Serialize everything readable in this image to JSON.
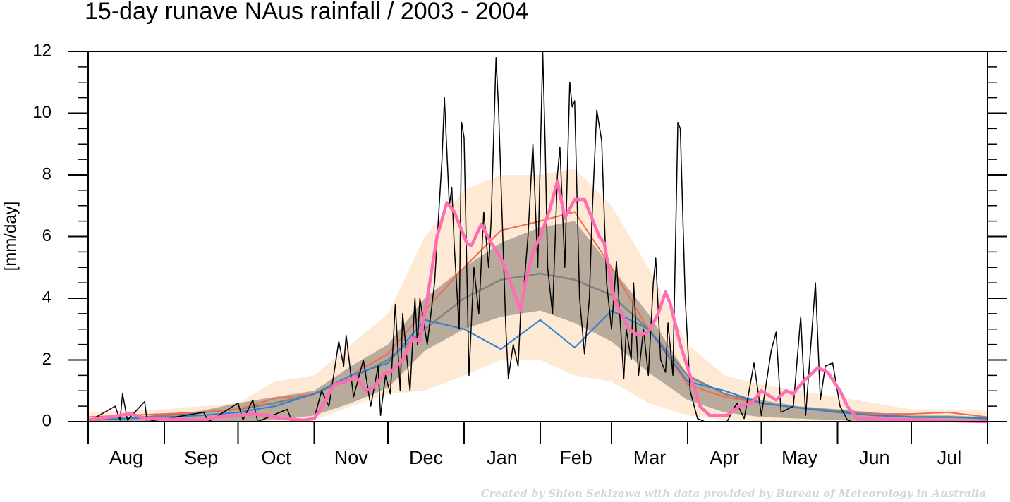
{
  "chart_data": {
    "type": "line",
    "title": "15-day runave NAus rainfall  /  2003 - 2004",
    "ylabel": "[mm/day]",
    "credit": "Created by Shion Sekizawa with data provided by Bureau of Meteorology in Australia",
    "xlim": [
      0,
      366
    ],
    "ylim": [
      0,
      12
    ],
    "yticks": [
      0,
      2,
      4,
      6,
      8,
      10,
      12
    ],
    "yminor_ticks": [
      0.5,
      1,
      1.5,
      2.5,
      3,
      3.5,
      4.5,
      5,
      5.5,
      6.5,
      7,
      7.5,
      8.5,
      9,
      9.5,
      10.5,
      11,
      11.5
    ],
    "month_ticks": [
      0,
      31,
      61,
      92,
      122,
      153,
      184,
      213,
      244,
      274,
      305,
      335,
      366
    ],
    "xticks": [
      {
        "value": 15.5,
        "label": "Aug"
      },
      {
        "value": 46,
        "label": "Sep"
      },
      {
        "value": 76.5,
        "label": "Oct"
      },
      {
        "value": 107,
        "label": "Nov"
      },
      {
        "value": 137.5,
        "label": "Dec"
      },
      {
        "value": 168.5,
        "label": "Jan"
      },
      {
        "value": 198.5,
        "label": "Feb"
      },
      {
        "value": 228.5,
        "label": "Mar"
      },
      {
        "value": 259,
        "label": "Apr"
      },
      {
        "value": 289.5,
        "label": "May"
      },
      {
        "value": 320,
        "label": "Jun"
      },
      {
        "value": 350.5,
        "label": "Jul"
      }
    ],
    "clim_x": [
      0,
      15,
      31,
      46,
      61,
      76,
      92,
      107,
      122,
      137,
      153,
      168,
      184,
      198,
      213,
      228,
      244,
      259,
      274,
      289,
      305,
      320,
      335,
      350,
      366
    ],
    "bands": [
      {
        "color": "#fde9d4",
        "lower": [
          0,
          0,
          0,
          0,
          0,
          0,
          0.05,
          0.5,
          0.9,
          1.0,
          1.5,
          2.0,
          2.0,
          1.5,
          1.3,
          0.6,
          0.2,
          0.05,
          0.02,
          0,
          0,
          0,
          0,
          0,
          0
        ],
        "upper": [
          0.3,
          0.35,
          0.4,
          0.5,
          0.6,
          1.3,
          1.5,
          2.5,
          3.5,
          6.0,
          7.5,
          8.0,
          8.0,
          8.2,
          7.0,
          5.0,
          2.5,
          1.5,
          1.2,
          1.0,
          0.8,
          0.6,
          0.4,
          0.4,
          0.35
        ]
      },
      {
        "color": "#b9ab9c",
        "lower": [
          0,
          0,
          0,
          0,
          0,
          0.05,
          0.2,
          0.6,
          1.1,
          2.3,
          3.0,
          3.4,
          3.6,
          3.2,
          2.6,
          1.6,
          0.7,
          0.3,
          0.15,
          0.1,
          0.05,
          0,
          0,
          0,
          0
        ],
        "upper": [
          0.1,
          0.15,
          0.2,
          0.35,
          0.6,
          0.8,
          1.0,
          1.8,
          2.5,
          4.0,
          5.0,
          5.8,
          6.3,
          6.5,
          5.0,
          3.5,
          1.5,
          0.9,
          0.7,
          0.5,
          0.4,
          0.3,
          0.2,
          0.2,
          0.15
        ]
      }
    ],
    "series": [
      {
        "color": "#808080",
        "line_width": 2.5,
        "x": "clim",
        "values": [
          0.05,
          0.1,
          0.2,
          0.3,
          0.4,
          0.6,
          0.9,
          1.4,
          2.0,
          3.0,
          4.0,
          4.6,
          4.8,
          4.6,
          4.1,
          3.0,
          1.5,
          0.9,
          0.6,
          0.45,
          0.35,
          0.25,
          0.15,
          0.15,
          0.1
        ]
      },
      {
        "color": "#f26b50",
        "line_width": 2,
        "x": "clim",
        "values": [
          0.15,
          0.2,
          0.25,
          0.3,
          0.4,
          0.75,
          0.9,
          1.5,
          2.2,
          3.6,
          5.0,
          6.2,
          6.5,
          6.8,
          5.0,
          3.0,
          1.2,
          0.8,
          0.6,
          0.45,
          0.3,
          0.25,
          0.25,
          0.3,
          0.15
        ]
      },
      {
        "color": "#2e7fd6",
        "line_width": 2,
        "x": "clim",
        "values": [
          0.05,
          0.1,
          0.15,
          0.2,
          0.3,
          0.5,
          0.9,
          1.5,
          1.9,
          3.3,
          3.0,
          2.35,
          3.3,
          2.4,
          3.6,
          3.0,
          1.3,
          1.0,
          0.6,
          0.45,
          0.3,
          0.2,
          0.15,
          0.15,
          0.1
        ]
      },
      {
        "color": "#000000",
        "line_width": 1.5,
        "x": [
          0,
          11,
          13,
          14,
          16,
          23,
          24,
          47,
          49,
          61,
          63,
          67,
          69,
          81,
          83,
          92,
          95,
          98,
          102,
          104,
          105,
          108,
          112,
          115,
          118,
          119,
          121,
          123,
          125,
          127,
          128,
          131,
          133,
          134,
          135,
          138,
          141,
          144,
          145,
          147,
          148,
          149,
          151,
          152,
          153,
          155,
          157,
          159,
          161,
          163,
          164,
          166,
          167,
          170,
          171,
          173,
          175,
          176,
          177,
          179,
          181,
          183,
          185,
          186,
          187,
          189,
          191,
          192,
          194,
          196,
          197,
          198,
          200,
          202,
          204,
          205,
          207,
          209,
          211,
          213,
          215,
          218,
          219,
          221,
          222,
          224,
          226,
          228,
          230,
          231,
          233,
          235,
          236,
          238,
          240,
          241,
          243,
          245,
          248,
          251,
          260,
          264,
          267,
          271,
          274,
          278,
          280,
          282,
          287,
          290,
          292,
          296,
          298,
          300,
          303,
          306,
          309,
          311,
          366
        ],
        "values": [
          0,
          0.5,
          0.05,
          0.9,
          0.05,
          0.65,
          0,
          0.3,
          0,
          0.6,
          0.05,
          0.7,
          0,
          0.4,
          0,
          0.1,
          1.0,
          0.5,
          2.6,
          1.8,
          2.8,
          0.8,
          2.0,
          0.5,
          1.8,
          0.2,
          1.5,
          0.9,
          3.8,
          1.0,
          3.5,
          1.0,
          4.0,
          2.5,
          4.0,
          2.5,
          4.5,
          8.5,
          10.5,
          7.0,
          7.6,
          5.7,
          3.0,
          9.7,
          9.2,
          1.5,
          5.0,
          3.5,
          6.8,
          5.0,
          6.5,
          11.8,
          10.2,
          3.0,
          1.4,
          2.5,
          1.8,
          3.5,
          4.0,
          6.0,
          9.0,
          5.0,
          12,
          9.0,
          5.0,
          3.5,
          8.0,
          8.9,
          5.0,
          11.0,
          10.2,
          10.4,
          4.0,
          2.2,
          4.0,
          6.5,
          10.1,
          9.1,
          4.5,
          3.0,
          5.2,
          1.4,
          3.0,
          2.0,
          4.5,
          1.5,
          3.0,
          1.5,
          4.5,
          5.3,
          2.0,
          1.6,
          3.2,
          1.5,
          9.7,
          9.5,
          4.0,
          1.0,
          0.1,
          0,
          0,
          0.6,
          0.1,
          1.9,
          0.2,
          2.3,
          2.9,
          0.3,
          0.5,
          3.4,
          0.2,
          4.5,
          0.7,
          1.8,
          1.9,
          0.5,
          0.05,
          0,
          0
        ]
      },
      {
        "color": "#ff6eb4",
        "line_width": 4.5,
        "x": [
          0,
          17,
          24,
          47,
          53,
          62,
          67,
          73,
          79,
          88,
          92,
          96,
          100,
          105,
          109,
          113,
          116,
          121,
          123,
          128,
          132,
          135,
          138,
          142,
          146,
          149,
          154,
          156,
          160,
          164,
          168,
          172,
          176,
          178,
          181,
          184,
          188,
          191,
          194,
          198,
          202,
          208,
          210,
          214,
          220,
          224,
          228,
          232,
          235,
          237,
          241,
          245,
          249,
          253,
          260,
          265,
          270,
          274,
          280,
          284,
          287,
          291,
          297,
          301,
          306,
          309,
          313,
          366
        ],
        "values": [
          0.05,
          0.25,
          0.1,
          0.05,
          0.15,
          0.2,
          0.25,
          0.2,
          0.1,
          0.05,
          0.1,
          0.6,
          1.2,
          1.3,
          1.45,
          1.0,
          1.1,
          1.6,
          1.6,
          2.0,
          2.7,
          2.6,
          4.0,
          6.0,
          7.1,
          6.8,
          5.8,
          5.7,
          6.4,
          5.8,
          5.3,
          4.5,
          3.6,
          4.5,
          5.5,
          6.0,
          6.9,
          7.8,
          6.6,
          7.2,
          7.2,
          6.0,
          5.8,
          4.0,
          3.0,
          2.8,
          2.9,
          3.5,
          4.2,
          3.8,
          2.5,
          1.5,
          0.5,
          0.2,
          0.2,
          0.5,
          0.6,
          1.0,
          0.7,
          1.0,
          0.9,
          1.3,
          1.75,
          1.6,
          1.0,
          0.5,
          0.1,
          0
        ]
      }
    ]
  }
}
